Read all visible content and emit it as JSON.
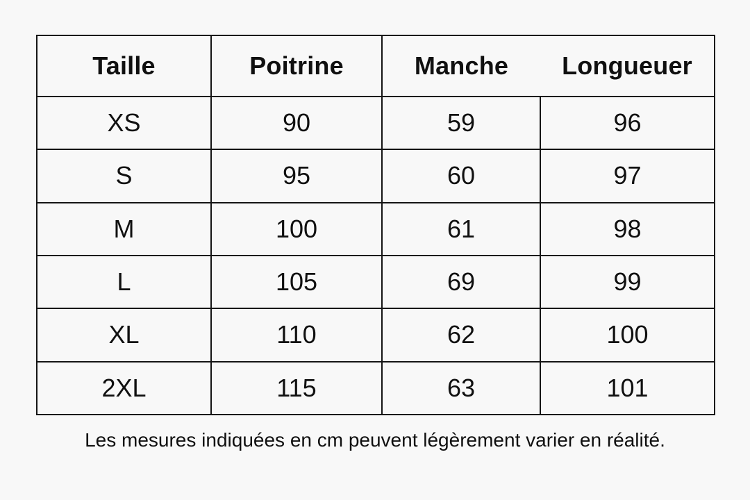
{
  "colors": {
    "background": "#f8f8f8",
    "border": "#141414",
    "text": "#101010"
  },
  "chart_data": {
    "type": "table",
    "columns": [
      "Taille",
      "Poitrine",
      "Manche",
      "Longueuer"
    ],
    "rows": [
      [
        "XS",
        "90",
        "59",
        "96"
      ],
      [
        "S",
        "95",
        "60",
        "97"
      ],
      [
        "M",
        "100",
        "61",
        "98"
      ],
      [
        "L",
        "105",
        "69",
        "99"
      ],
      [
        "XL",
        "110",
        "62",
        "100"
      ],
      [
        "2XL",
        "115",
        "63",
        "101"
      ]
    ],
    "unit": "cm"
  },
  "footnote": "Les mesures indiquées en cm peuvent légèrement varier en réalité."
}
